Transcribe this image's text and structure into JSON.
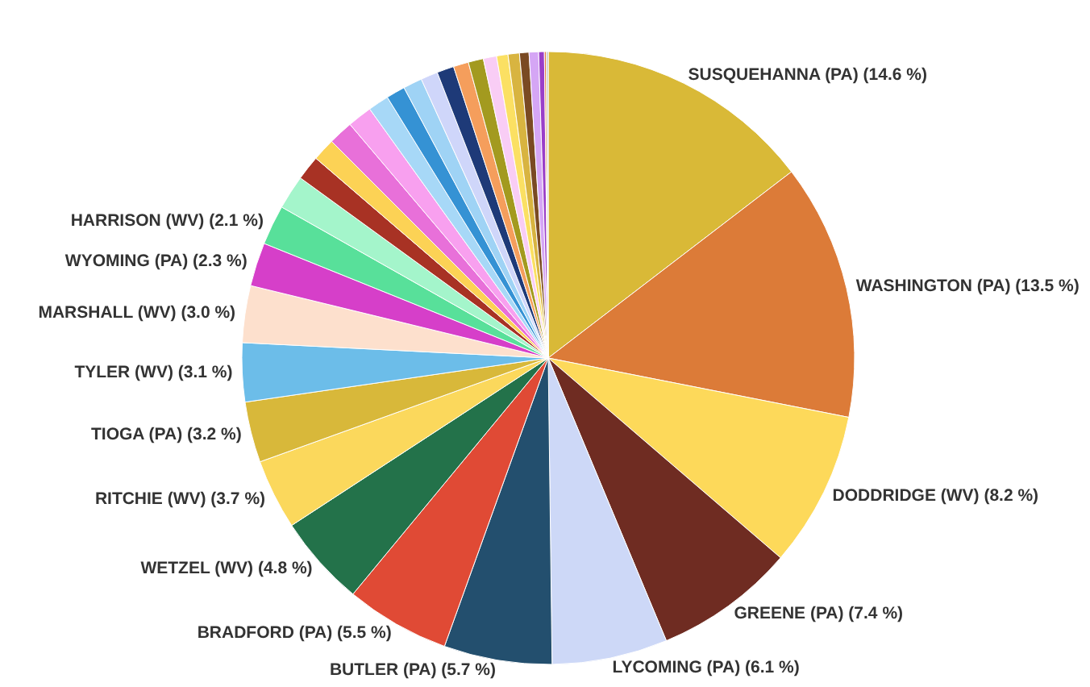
{
  "chart_data": {
    "type": "pie",
    "categories": [
      "SUSQUEHANNA (PA)",
      "WASHINGTON (PA)",
      "DODDRIDGE (WV)",
      "GREENE (PA)",
      "LYCOMING (PA)",
      "BUTLER (PA)",
      "BRADFORD (PA)",
      "WETZEL (WV)",
      "RITCHIE (WV)",
      "TIOGA (PA)",
      "TYLER (WV)",
      "MARSHALL (WV)",
      "WYOMING (PA)",
      "HARRISON (WV)",
      null,
      null,
      null,
      null,
      null,
      null,
      null,
      null,
      null,
      null,
      null,
      null,
      null,
      null,
      null,
      null,
      null,
      null,
      null,
      null
    ],
    "values": [
      14.6,
      13.5,
      8.2,
      7.4,
      6.1,
      5.7,
      5.5,
      4.8,
      3.7,
      3.2,
      3.1,
      3.0,
      2.3,
      2.1,
      1.8,
      1.3,
      1.2,
      1.3,
      1.3,
      1.1,
      1.0,
      1.0,
      0.9,
      0.9,
      0.8,
      0.8,
      0.7,
      0.6,
      0.6,
      0.5,
      0.5,
      0.3,
      0.1,
      0.1
    ],
    "value_labels": [
      "(14.6 %)",
      "(13.5 %)",
      "(8.2 %)",
      "(7.4 %)",
      "(6.1 %)",
      "(5.7 %)",
      "(5.5 %)",
      "(4.8 %)",
      "(3.7 %)",
      "(3.2 %)",
      "(3.1 %)",
      "(3.0 %)",
      "(2.3 %)",
      "(2.1 %)",
      null,
      null,
      null,
      null,
      null,
      null,
      null,
      null,
      null,
      null,
      null,
      null,
      null,
      null,
      null,
      null,
      null,
      null,
      null,
      null
    ],
    "colors": [
      "#d9b937",
      "#dc7b38",
      "#fdd95a",
      "#6f2c22",
      "#cdd8f7",
      "#234f6e",
      "#e04a35",
      "#23724a",
      "#fbd85c",
      "#d8b83a",
      "#6cbde9",
      "#fde0cd",
      "#d63fc9",
      "#58e09a",
      "#a4f5cb",
      "#a83224",
      "#fcd255",
      "#e870d9",
      "#f8a0ef",
      "#a7d8f7",
      "#3592d4",
      "#9fd3f5",
      "#cfd6fa",
      "#1e3a78",
      "#f59e5c",
      "#a39a1f",
      "#f9cdf5",
      "#fbe063",
      "#d8b440",
      "#7a4a23",
      "#d5a6f5",
      "#9a3ec9",
      "#e07a40",
      "#c0c0c0"
    ]
  }
}
